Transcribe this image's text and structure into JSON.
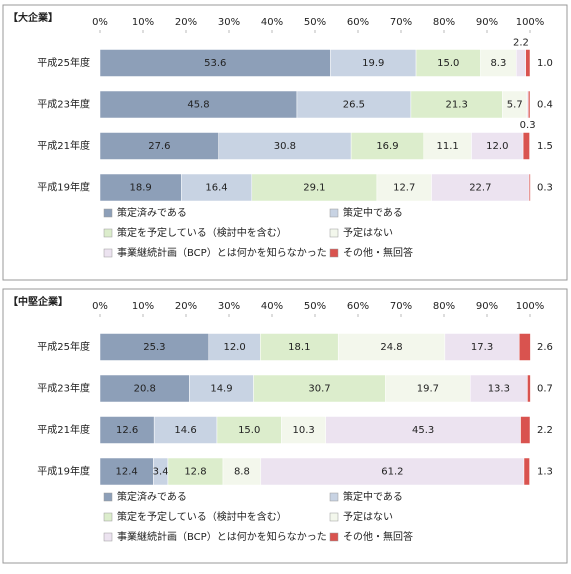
{
  "chart_data": [
    {
      "type": "stacked-bar-horizontal",
      "title": "【大企業】",
      "categories": [
        "平成25年度",
        "平成23年度",
        "平成21年度",
        "平成19年度"
      ],
      "xlim": [
        0,
        100
      ],
      "xticks": [
        {
          "value": 0,
          "label": "0%"
        },
        {
          "value": 10,
          "label": "10%"
        },
        {
          "value": 20,
          "label": "20%"
        },
        {
          "value": 30,
          "label": "30%"
        },
        {
          "value": 40,
          "label": "40%"
        },
        {
          "value": 50,
          "label": "50%"
        },
        {
          "value": 60,
          "label": "60%"
        },
        {
          "value": 70,
          "label": "70%"
        },
        {
          "value": 80,
          "label": "80%"
        },
        {
          "value": 90,
          "label": "90%"
        },
        {
          "value": 100,
          "label": "100%"
        }
      ],
      "series": [
        {
          "name": "策定済みである",
          "color": "#8d9fb8",
          "values": [
            53.6,
            45.8,
            27.6,
            18.9
          ]
        },
        {
          "name": "策定中である",
          "color": "#c8d3e3",
          "values": [
            19.9,
            26.5,
            30.8,
            16.4
          ]
        },
        {
          "name": "策定を予定している（検討中を含む）",
          "color": "#dcedcc",
          "values": [
            15.0,
            21.3,
            16.9,
            29.1
          ],
          "value_labels": [
            "15.0",
            "21.3",
            "16.9",
            "29.1"
          ]
        },
        {
          "name": "予定はない",
          "color": "#f3f7ec",
          "values": [
            8.3,
            5.7,
            11.1,
            12.7
          ]
        },
        {
          "name": "事業継続計画（BCP）とは何かを知らなかった",
          "color": "#ece3f0",
          "values": [
            2.2,
            0.3,
            12.0,
            22.7
          ],
          "value_labels": [
            "2.2",
            "0.3",
            "12.0",
            "22.7"
          ]
        },
        {
          "name": "その他・無回答",
          "color": "#d9534f",
          "values": [
            1.0,
            0.4,
            1.5,
            0.3
          ],
          "value_labels": [
            "1.0",
            "0.4",
            "1.5",
            "0.3"
          ]
        }
      ]
    },
    {
      "type": "stacked-bar-horizontal",
      "title": "【中堅企業】",
      "categories": [
        "平成25年度",
        "平成23年度",
        "平成21年度",
        "平成19年度"
      ],
      "xlim": [
        0,
        100
      ],
      "xticks": [
        {
          "value": 0,
          "label": "0%"
        },
        {
          "value": 10,
          "label": "10%"
        },
        {
          "value": 20,
          "label": "20%"
        },
        {
          "value": 30,
          "label": "30%"
        },
        {
          "value": 40,
          "label": "40%"
        },
        {
          "value": 50,
          "label": "50%"
        },
        {
          "value": 60,
          "label": "60%"
        },
        {
          "value": 70,
          "label": "70%"
        },
        {
          "value": 80,
          "label": "80%"
        },
        {
          "value": 90,
          "label": "90%"
        },
        {
          "value": 100,
          "label": "100%"
        }
      ],
      "series": [
        {
          "name": "策定済みである",
          "color": "#8d9fb8",
          "values": [
            25.3,
            20.8,
            12.6,
            12.4
          ]
        },
        {
          "name": "策定中である",
          "color": "#c8d3e3",
          "values": [
            12.0,
            14.9,
            14.6,
            3.4
          ],
          "value_labels": [
            "12.0",
            "14.9",
            "14.6",
            "3.4"
          ]
        },
        {
          "name": "策定を予定している（検討中を含む）",
          "color": "#dcedcc",
          "values": [
            18.1,
            30.7,
            15.0,
            12.8
          ],
          "value_labels": [
            "18.1",
            "30.7",
            "15.0",
            "12.8"
          ]
        },
        {
          "name": "予定はない",
          "color": "#f3f7ec",
          "values": [
            24.8,
            19.7,
            10.3,
            8.8
          ]
        },
        {
          "name": "事業継続計画（BCP）とは何かを知らなかった",
          "color": "#ece3f0",
          "values": [
            17.3,
            13.3,
            45.3,
            61.2
          ]
        },
        {
          "name": "その他・無回答",
          "color": "#d9534f",
          "values": [
            2.6,
            0.7,
            2.2,
            1.3
          ]
        }
      ]
    }
  ]
}
